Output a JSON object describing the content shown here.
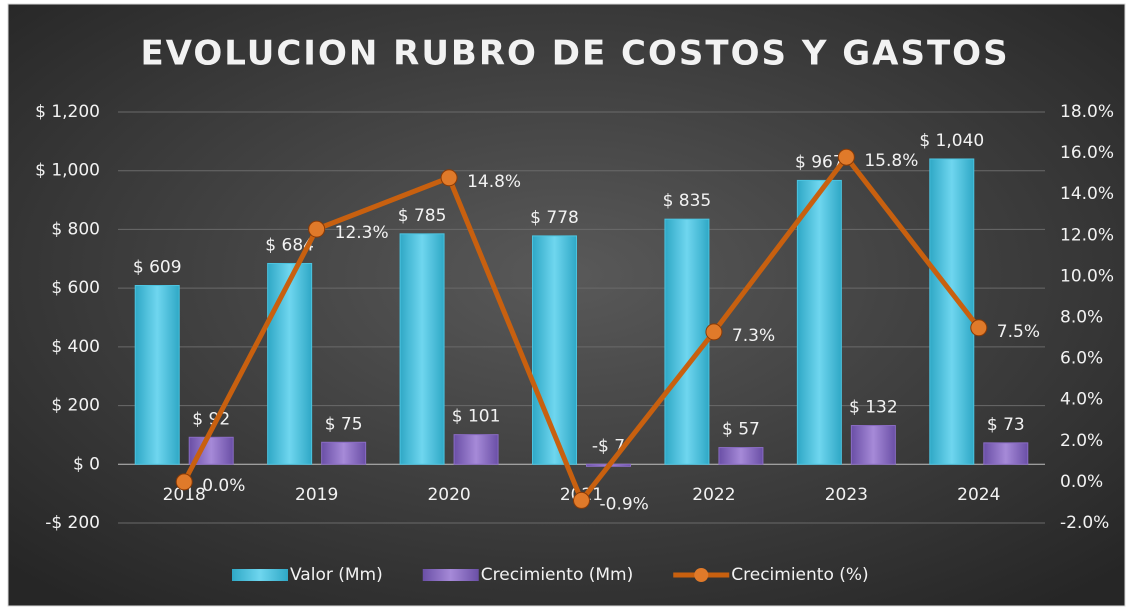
{
  "chart_data": {
    "type": "bar_line",
    "title": "EVOLUCION RUBRO  DE COSTOS Y GASTOS",
    "categories": [
      "2018",
      "2019",
      "2020",
      "2021",
      "2022",
      "2023",
      "2024"
    ],
    "series": [
      {
        "name": "Valor (Mm)",
        "type": "bar",
        "color": "#4cc4e0",
        "values": [
          609,
          684,
          785,
          778,
          835,
          967,
          1040
        ],
        "value_labels": [
          "$ 609",
          "$ 684",
          "$ 785",
          "$ 778",
          "$ 835",
          "$ 967",
          "$ 1,040"
        ]
      },
      {
        "name": "Crecimiento (Mm)",
        "type": "bar",
        "color": "#8a6cc4",
        "values": [
          92,
          75,
          101,
          -7,
          57,
          132,
          73
        ],
        "value_labels": [
          "$ 92",
          "$ 75",
          "$ 101",
          "-$ 7",
          "$ 57",
          "$ 132",
          "$ 73"
        ]
      },
      {
        "name": "Crecimiento (%)",
        "type": "line",
        "axis": "y2",
        "color": "#c8600f",
        "values": [
          0.0,
          12.3,
          14.8,
          -0.9,
          7.3,
          15.8,
          7.5
        ],
        "value_labels": [
          "0.0%",
          "12.3%",
          "14.8%",
          "-0.9%",
          "7.3%",
          "15.8%",
          "7.5%"
        ]
      }
    ],
    "ylim": [
      -200,
      1200
    ],
    "yticks": [
      {
        "value": -200,
        "label": "-$ 200"
      },
      {
        "value": 0,
        "label": "$ 0"
      },
      {
        "value": 200,
        "label": "$ 200"
      },
      {
        "value": 400,
        "label": "$ 400"
      },
      {
        "value": 600,
        "label": "$ 600"
      },
      {
        "value": 800,
        "label": "$ 800"
      },
      {
        "value": 1000,
        "label": "$ 1,000"
      },
      {
        "value": 1200,
        "label": "$ 1,200"
      }
    ],
    "y2lim": [
      -2,
      18
    ],
    "y2ticks": [
      {
        "value": -2,
        "label": "-2.0%"
      },
      {
        "value": 0,
        "label": "0.0%"
      },
      {
        "value": 2,
        "label": "2.0%"
      },
      {
        "value": 4,
        "label": "4.0%"
      },
      {
        "value": 6,
        "label": "6.0%"
      },
      {
        "value": 8,
        "label": "8.0%"
      },
      {
        "value": 10,
        "label": "10.0%"
      },
      {
        "value": 12,
        "label": "12.0%"
      },
      {
        "value": 14,
        "label": "14.0%"
      },
      {
        "value": 16,
        "label": "16.0%"
      },
      {
        "value": 18,
        "label": "18.0%"
      }
    ],
    "grid": true,
    "legend": "bottom"
  }
}
